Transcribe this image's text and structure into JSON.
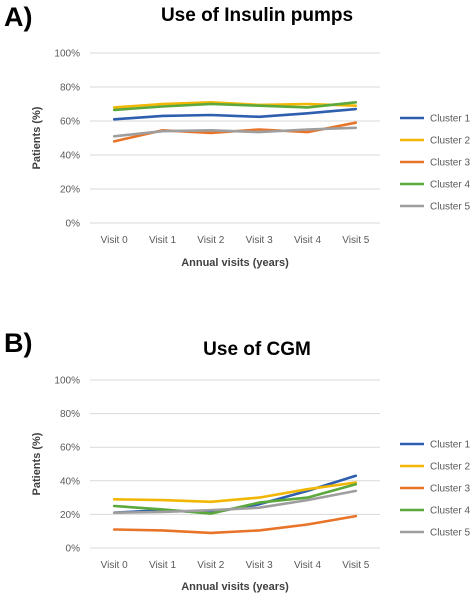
{
  "panels": [
    {
      "label": "A)",
      "title": "Use of Insulin pumps"
    },
    {
      "label": "B)",
      "title": "Use of CGM"
    }
  ],
  "chart_data": [
    {
      "type": "line",
      "title": "Use of Insulin pumps",
      "xlabel": "Annual visits (years)",
      "ylabel": "Patients (%)",
      "categories": [
        "Visit 0",
        "Visit 1",
        "Visit 2",
        "Visit 3",
        "Visit 4",
        "Visit 5"
      ],
      "ylim": [
        0,
        100
      ],
      "yticks": [
        0,
        20,
        40,
        60,
        80,
        100
      ],
      "yticklabels": [
        "0%",
        "20%",
        "40%",
        "60%",
        "80%",
        "100%"
      ],
      "grid": true,
      "legend": "right",
      "series": [
        {
          "name": "Cluster 1",
          "color": "#2E5FAE",
          "values": [
            61,
            63,
            63.5,
            62.5,
            64.5,
            67
          ]
        },
        {
          "name": "Cluster 2",
          "color": "#F2B705",
          "values": [
            68,
            70,
            71,
            69.5,
            70,
            69
          ]
        },
        {
          "name": "Cluster 3",
          "color": "#E8742A",
          "values": [
            48,
            54.5,
            53,
            55,
            53.5,
            59
          ]
        },
        {
          "name": "Cluster 4",
          "color": "#5BA83C",
          "values": [
            66.5,
            68.5,
            70,
            69,
            68,
            71
          ]
        },
        {
          "name": "Cluster 5",
          "color": "#9E9E9E",
          "values": [
            51,
            54,
            54.5,
            53.5,
            55,
            56
          ]
        }
      ]
    },
    {
      "type": "line",
      "title": "Use of CGM",
      "xlabel": "Annual visits (years)",
      "ylabel": "Patients (%)",
      "categories": [
        "Visit 0",
        "Visit 1",
        "Visit 2",
        "Visit 3",
        "Visit 4",
        "Visit 5"
      ],
      "ylim": [
        0,
        100
      ],
      "yticks": [
        0,
        20,
        40,
        60,
        80,
        100
      ],
      "yticklabels": [
        "0%",
        "20%",
        "40%",
        "60%",
        "80%",
        "100%"
      ],
      "grid": true,
      "legend": "right",
      "series": [
        {
          "name": "Cluster 1",
          "color": "#2E5FAE",
          "values": [
            21,
            22.5,
            21,
            26,
            34,
            43
          ]
        },
        {
          "name": "Cluster 2",
          "color": "#F2B705",
          "values": [
            29,
            28.5,
            27.5,
            30,
            35,
            39
          ]
        },
        {
          "name": "Cluster 3",
          "color": "#E8742A",
          "values": [
            11,
            10.5,
            9,
            10.5,
            14,
            19
          ]
        },
        {
          "name": "Cluster 4",
          "color": "#5BA83C",
          "values": [
            25,
            23,
            20.5,
            27,
            30,
            38
          ]
        },
        {
          "name": "Cluster 5",
          "color": "#9E9E9E",
          "values": [
            21,
            21.5,
            22.5,
            24,
            28.5,
            34
          ]
        }
      ]
    }
  ]
}
